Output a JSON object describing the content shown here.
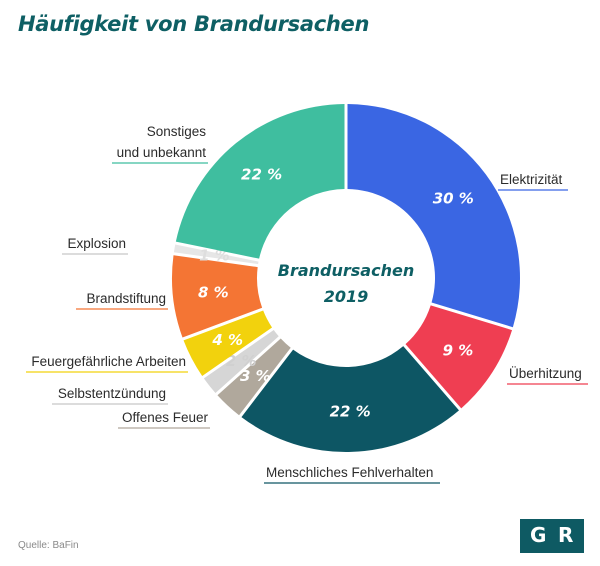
{
  "title": "Häufigkeit von Brandursachen",
  "source": "Quelle: BaFin",
  "logo": {
    "left": "G",
    "right": "R"
  },
  "chart_data": {
    "type": "pie",
    "center_label": [
      "Brandursachen",
      "2019"
    ],
    "unit": "%",
    "slices": [
      {
        "label": "Elektrizität",
        "value": 30,
        "value_text": "30 %",
        "color": "#3a66e3",
        "label_color": "#ffffff"
      },
      {
        "label": "Überhitzung",
        "value": 9,
        "value_text": "9 %",
        "color": "#ef3e52",
        "label_color": "#ffffff"
      },
      {
        "label": "Menschliches Fehlverhalten",
        "value": 22,
        "value_text": "22 %",
        "color": "#0d5664",
        "label_color": "#ffffff"
      },
      {
        "label": "Offenes Feuer",
        "value": 3,
        "value_text": "3 %",
        "color": "#b0a89c",
        "label_color": "#ffffff"
      },
      {
        "label": "Selbstentzündung",
        "value": 2,
        "value_text": "2 %",
        "color": "#d6d6d6",
        "label_color": "#d0d0d0"
      },
      {
        "label": "Feuergefährliche Arbeiten",
        "value": 4,
        "value_text": "4 %",
        "color": "#f2d20d",
        "label_color": "#ffffff"
      },
      {
        "label": "Brandstiftung",
        "value": 8,
        "value_text": "8 %",
        "color": "#f47534",
        "label_color": "#ffffff"
      },
      {
        "label": "Explosion",
        "value": 1,
        "value_text": "1 %",
        "color": "#e6e6e6",
        "label_color": "#dedede"
      },
      {
        "label": "Sonstiges und unbekannt",
        "value": 22,
        "value_text": "22 %",
        "color": "#3fbe9f",
        "label_color": "#ffffff"
      }
    ]
  }
}
